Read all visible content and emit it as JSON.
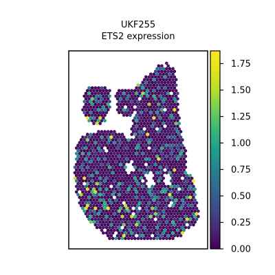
{
  "chart_data": {
    "type": "heatmap",
    "title_lines": [
      "UKF255",
      "ETS2 expression"
    ],
    "colormap": "viridis",
    "colorbar": {
      "min": 0.0,
      "max": 1.87,
      "ticks": [
        {
          "value": 0.0,
          "label": "0.00"
        },
        {
          "value": 0.25,
          "label": "0.25"
        },
        {
          "value": 0.5,
          "label": "0.50"
        },
        {
          "value": 0.75,
          "label": "0.75"
        },
        {
          "value": 1.0,
          "label": "1.00"
        },
        {
          "value": 1.25,
          "label": "1.25"
        },
        {
          "value": 1.5,
          "label": "1.50"
        },
        {
          "value": 1.75,
          "label": "1.75"
        }
      ]
    },
    "spot_summary": {
      "mostly_low": true,
      "low_value_fraction": 0.72,
      "high_value_fraction": 0.03
    },
    "grid": false,
    "axes_ticks": false
  }
}
